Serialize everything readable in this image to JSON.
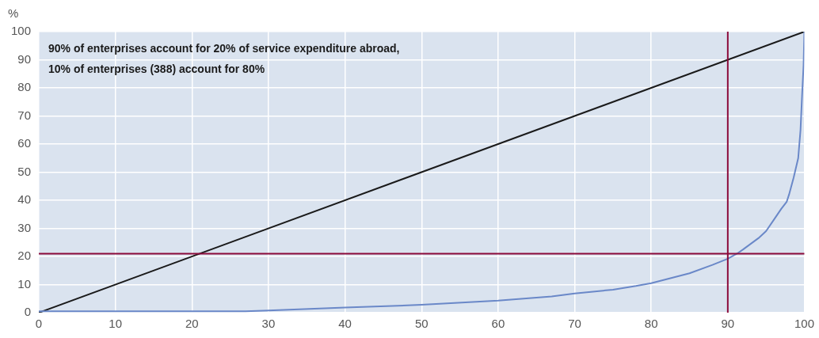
{
  "chart_data": {
    "type": "line",
    "ylabel": "%",
    "annotations": [
      "90% of enterprises account for 20% of service expenditure abroad,",
      "10% of enterprises (388) account for 80%"
    ],
    "series": [
      {
        "color": "#6a88c8",
        "x": [
          0,
          10,
          20,
          27,
          30,
          40,
          50,
          60,
          67,
          70,
          75,
          78,
          80,
          85,
          88,
          90,
          91.2,
          92,
          94,
          95,
          96,
          97,
          97.7,
          98,
          98.6,
          99.2,
          99.5,
          99.7,
          99.9,
          100
        ],
        "values": [
          0.5,
          0.5,
          0.5,
          0.5,
          0.8,
          1.8,
          2.8,
          4.3,
          5.8,
          6.8,
          8.2,
          9.5,
          10.5,
          14,
          17,
          19.2,
          21,
          22.5,
          26.5,
          29,
          33,
          37,
          39.5,
          42,
          48,
          55,
          65,
          77,
          88,
          100
        ]
      },
      {
        "color": "#1a1a1a",
        "x": [
          0,
          100
        ],
        "values": [
          0,
          100
        ]
      }
    ],
    "ref_lines": [
      {
        "axis": "x",
        "value": 90,
        "color": "#8b0a3a"
      },
      {
        "axis": "y",
        "value": 21,
        "color": "#8b0a3a"
      }
    ],
    "xlim": [
      0,
      100
    ],
    "xticks": [
      0,
      10,
      20,
      30,
      40,
      50,
      60,
      70,
      80,
      90,
      100
    ],
    "ylim": [
      0,
      100
    ],
    "yticks": [
      0,
      10,
      20,
      30,
      40,
      50,
      60,
      70,
      80,
      90,
      100
    ],
    "grid": true,
    "marker": "none",
    "legend": false
  }
}
